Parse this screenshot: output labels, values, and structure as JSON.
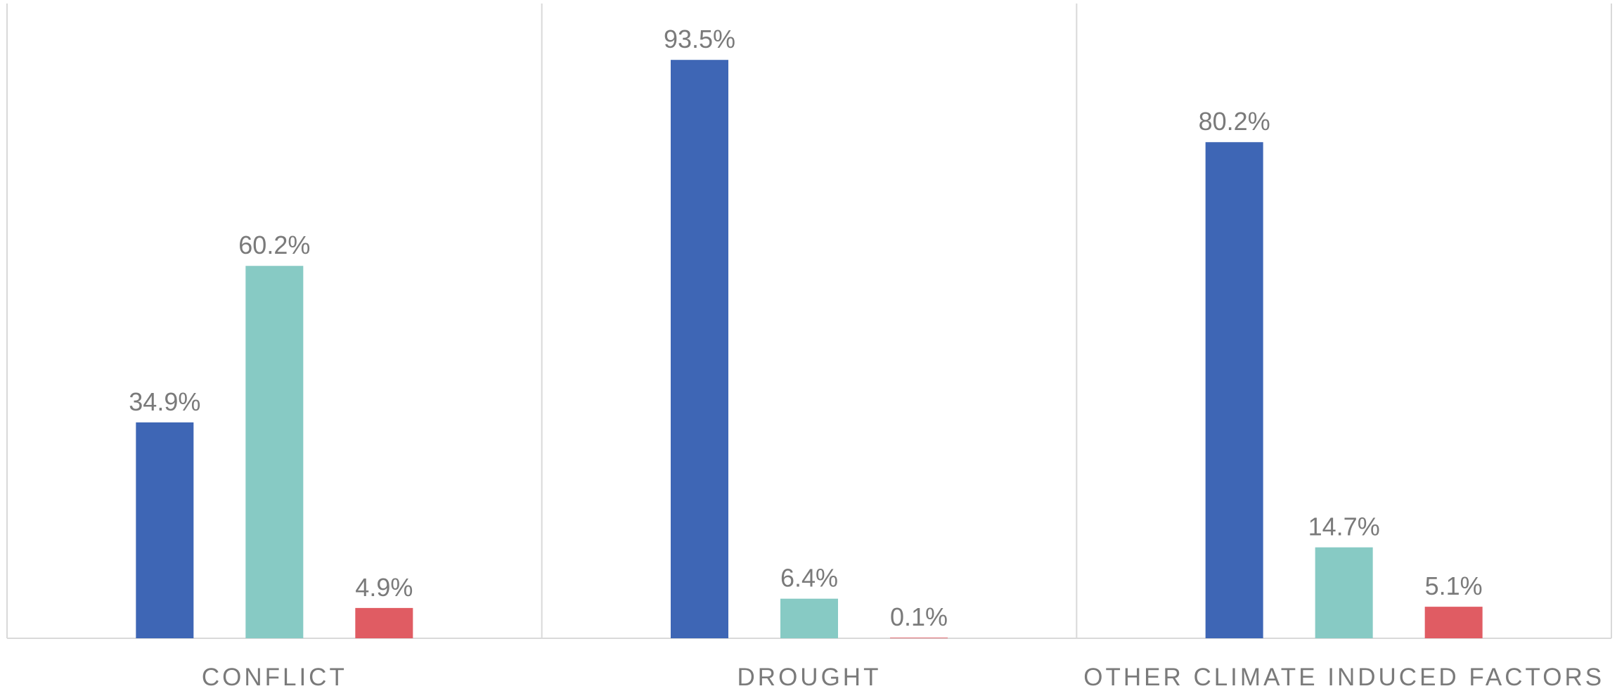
{
  "chart_data": {
    "type": "bar",
    "categories": [
      "CONFLICT",
      "DROUGHT",
      "OTHER CLIMATE INDUCED FACTORS"
    ],
    "series": [
      {
        "values": [
          34.9,
          93.5,
          80.2
        ],
        "labels": [
          "34.9%",
          "93.5%",
          "80.2%"
        ],
        "color": "#3e66b5"
      },
      {
        "values": [
          60.2,
          6.4,
          14.7
        ],
        "labels": [
          "60.2%",
          "6.4%",
          "14.7%"
        ],
        "color": "#87cac4"
      },
      {
        "values": [
          4.9,
          0.1,
          5.1
        ],
        "labels": [
          "4.9%",
          "0.1%",
          "5.1%"
        ],
        "color": "#e05c63"
      }
    ],
    "ylim": [
      0,
      100
    ],
    "value_format": "percent",
    "legend": "none",
    "gridlines": "category separators"
  },
  "colors": {
    "axis": "#d9d9d9",
    "label_text": "#7a7a7a"
  }
}
